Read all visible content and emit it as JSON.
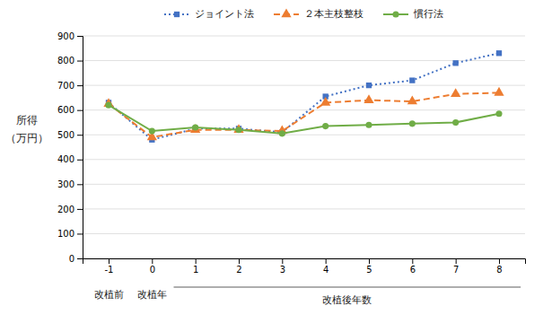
{
  "chart_data": {
    "type": "line",
    "x": [
      -1,
      0,
      1,
      2,
      3,
      4,
      5,
      6,
      7,
      8
    ],
    "xlim": [
      -1.6,
      8.6
    ],
    "xticks": [
      -1,
      0,
      1,
      2,
      3,
      4,
      5,
      6,
      7,
      8
    ],
    "ylim": [
      0,
      900
    ],
    "yticks": [
      0,
      100,
      200,
      300,
      400,
      500,
      600,
      700,
      800,
      900
    ],
    "ylabel": [
      "所得",
      "（万円）"
    ],
    "xlabel": "改植後年数",
    "annotations": [
      {
        "text": "改植前",
        "x": -1
      },
      {
        "text": "改植年",
        "x": 0
      }
    ],
    "grid": true,
    "legend": "top",
    "series": [
      {
        "name": "ジョイント法",
        "color": "#4472c4",
        "marker": "square",
        "line_style": "dotted",
        "values": [
          630,
          480,
          525,
          525,
          510,
          655,
          700,
          720,
          790,
          830
        ]
      },
      {
        "name": "２本主枝整枝",
        "color": "#ed7d31",
        "marker": "triangle",
        "line_style": "dashed",
        "values": [
          625,
          490,
          520,
          520,
          515,
          630,
          640,
          635,
          665,
          670
        ]
      },
      {
        "name": "慣行法",
        "color": "#70ad47",
        "marker": "circle",
        "line_style": "solid",
        "values": [
          620,
          515,
          530,
          520,
          505,
          535,
          540,
          545,
          550,
          585
        ]
      }
    ]
  }
}
